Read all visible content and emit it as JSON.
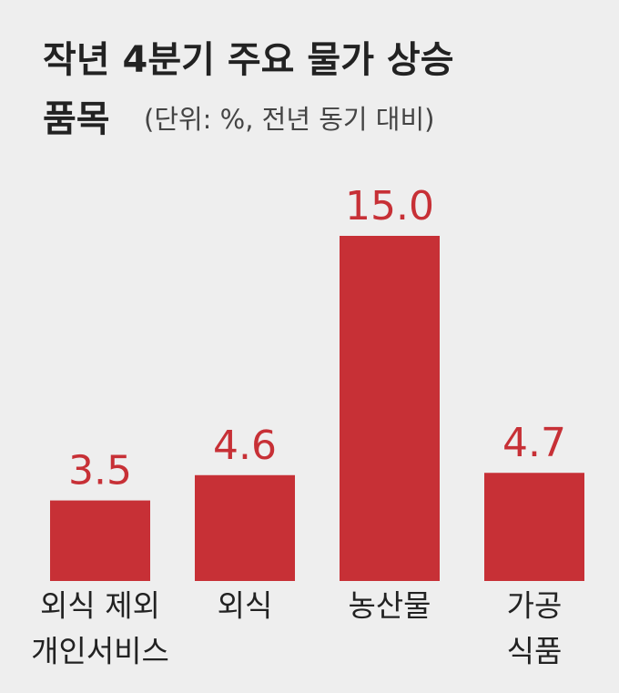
{
  "chart_data": {
    "type": "bar",
    "title": [
      "작년 4분기 주요 물가 상승",
      "품목"
    ],
    "subtitle": "(단위: %, 전년 동기 대비)",
    "categories": [
      [
        "외식 제외",
        "개인서비스"
      ],
      [
        "외식"
      ],
      [
        "농산물"
      ],
      [
        "가공",
        "식품"
      ]
    ],
    "values": [
      3.5,
      4.6,
      15,
      4.7
    ],
    "value_labels": [
      "3.5",
      "4.6",
      "15.0",
      "4.7"
    ],
    "color": "#c73036",
    "ylim": [
      0,
      15
    ]
  }
}
